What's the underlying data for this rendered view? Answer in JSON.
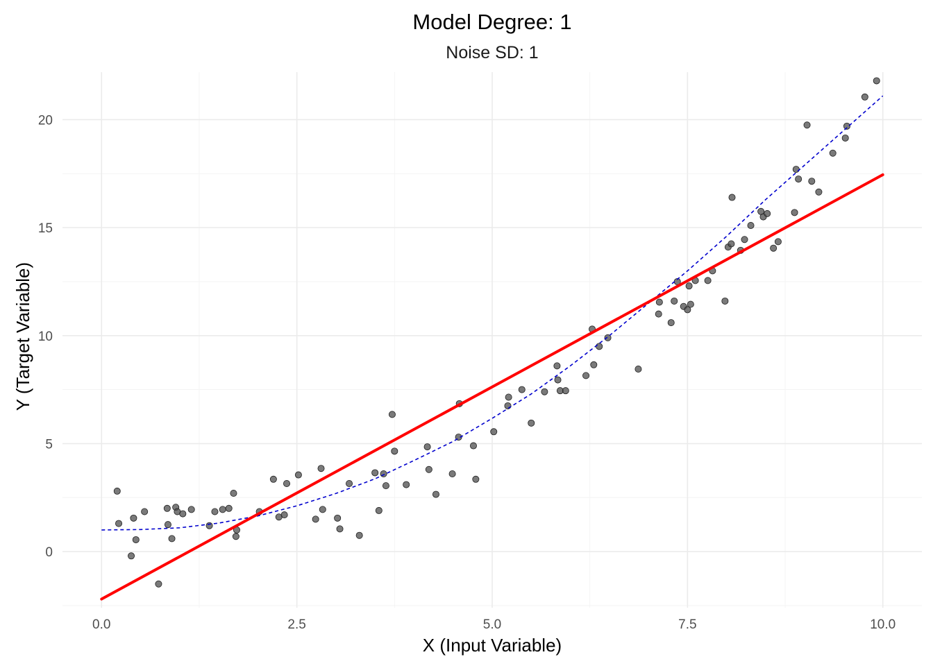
{
  "chart_data": {
    "type": "scatter",
    "title": "Model Degree: 1",
    "subtitle": "Noise SD: 1",
    "xlabel": "X (Input Variable)",
    "ylabel": "Y (Target Variable)",
    "xlim": [
      -0.5,
      10.5
    ],
    "ylim": [
      -2.6,
      22.2
    ],
    "x_ticks": [
      0,
      2.5,
      5,
      7.5,
      10
    ],
    "x_tick_labels": [
      "0.0",
      "2.5",
      "5.0",
      "7.5",
      "10.0"
    ],
    "y_ticks": [
      0,
      5,
      10,
      15,
      20
    ],
    "y_tick_labels": [
      "0",
      "5",
      "10",
      "15",
      "20"
    ],
    "grid": true,
    "legend": "none",
    "colors": {
      "points": "#4d4d4d",
      "fit_line": "#ff0000",
      "true_curve": "#0000cd"
    },
    "series": [
      {
        "kind": "points",
        "x": [
          0.2,
          0.22,
          0.38,
          0.41,
          0.44,
          0.55,
          0.73,
          0.84,
          0.85,
          0.9,
          0.95,
          0.97,
          1.04,
          1.15,
          1.38,
          1.45,
          1.55,
          1.63,
          1.69,
          1.72,
          1.73,
          2.02,
          2.2,
          2.27,
          2.34,
          2.37,
          2.52,
          2.74,
          2.81,
          2.83,
          3.02,
          3.05,
          3.17,
          3.3,
          3.5,
          3.55,
          3.61,
          3.64,
          3.72,
          3.75,
          3.9,
          4.17,
          4.19,
          4.28,
          4.49,
          4.57,
          4.58,
          4.76,
          4.79,
          5.02,
          5.2,
          5.21,
          5.38,
          5.5,
          5.67,
          5.83,
          5.84,
          5.87,
          5.94,
          6.2,
          6.28,
          6.3,
          6.37,
          6.48,
          6.87,
          7.13,
          7.14,
          7.29,
          7.33,
          7.37,
          7.45,
          7.5,
          7.52,
          7.54,
          7.6,
          7.76,
          7.82,
          7.98,
          8.02,
          8.06,
          8.07,
          8.18,
          8.23,
          8.31,
          8.44,
          8.47,
          8.52,
          8.6,
          8.66,
          8.87,
          8.89,
          8.92,
          9.03,
          9.09,
          9.18,
          9.36,
          9.52,
          9.54,
          9.77,
          9.92
        ],
        "y": [
          2.8,
          1.3,
          -0.2,
          1.55,
          0.55,
          1.85,
          -1.5,
          2.0,
          1.25,
          0.6,
          2.05,
          1.85,
          1.75,
          1.95,
          1.2,
          1.85,
          1.95,
          2.0,
          2.7,
          0.7,
          1.0,
          1.85,
          3.35,
          1.6,
          1.7,
          3.15,
          3.55,
          1.5,
          3.85,
          1.95,
          1.55,
          1.05,
          3.15,
          0.75,
          3.65,
          1.9,
          3.6,
          3.05,
          6.35,
          4.65,
          3.1,
          4.85,
          3.8,
          2.65,
          3.6,
          5.3,
          6.85,
          4.9,
          3.35,
          5.55,
          6.75,
          7.15,
          7.5,
          5.95,
          7.4,
          8.6,
          7.95,
          7.45,
          7.45,
          8.15,
          10.3,
          8.65,
          9.5,
          9.9,
          8.45,
          11.0,
          11.55,
          10.6,
          11.6,
          12.5,
          11.35,
          11.2,
          12.3,
          11.45,
          12.55,
          12.55,
          13.0,
          11.6,
          14.1,
          14.25,
          16.4,
          13.95,
          14.45,
          15.1,
          15.75,
          15.5,
          15.65,
          14.05,
          14.35,
          15.7,
          17.7,
          17.25,
          19.75,
          17.15,
          16.65,
          18.45,
          19.15,
          19.7,
          21.05,
          21.8
        ]
      },
      {
        "kind": "fitted-line",
        "x": [
          0,
          10
        ],
        "y": [
          -2.2,
          17.45
        ]
      },
      {
        "kind": "true-curve",
        "x": [
          0,
          0.5,
          1,
          1.5,
          2,
          2.5,
          3,
          3.5,
          4,
          4.5,
          5,
          5.5,
          6,
          6.5,
          7,
          7.5,
          8,
          8.5,
          9,
          9.5,
          10
        ],
        "y": [
          1.0,
          1.02,
          1.1,
          1.32,
          1.65,
          2.12,
          2.69,
          3.37,
          4.22,
          5.1,
          6.17,
          7.3,
          8.6,
          10.0,
          11.5,
          13.0,
          14.6,
          16.3,
          17.9,
          19.5,
          21.1
        ]
      }
    ]
  }
}
